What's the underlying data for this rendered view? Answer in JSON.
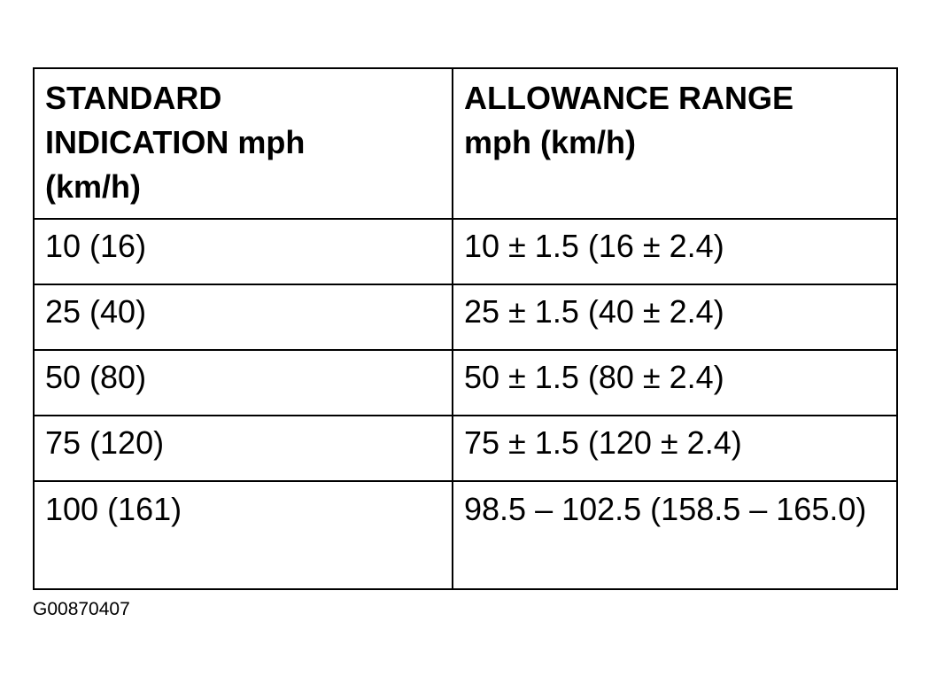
{
  "table": {
    "header": [
      [
        "STANDARD",
        "INDICATION mph",
        "(km/h)"
      ],
      [
        "ALLOWANCE RANGE",
        "mph (km/h)"
      ]
    ],
    "rows": [
      [
        "10 (16)",
        "10 ± 1.5 (16 ± 2.4)"
      ],
      [
        "25 (40)",
        "25 ± 1.5 (40 ± 2.4)"
      ],
      [
        "50 (80)",
        "50 ± 1.5 (80 ± 2.4)"
      ],
      [
        "75 (120)",
        "75 ± 1.5 (120 ± 2.4)"
      ],
      [
        "100 (161)",
        "98.5 – 102.5 (158.5 – 165.0)"
      ]
    ]
  },
  "figure_id": "G00870407"
}
